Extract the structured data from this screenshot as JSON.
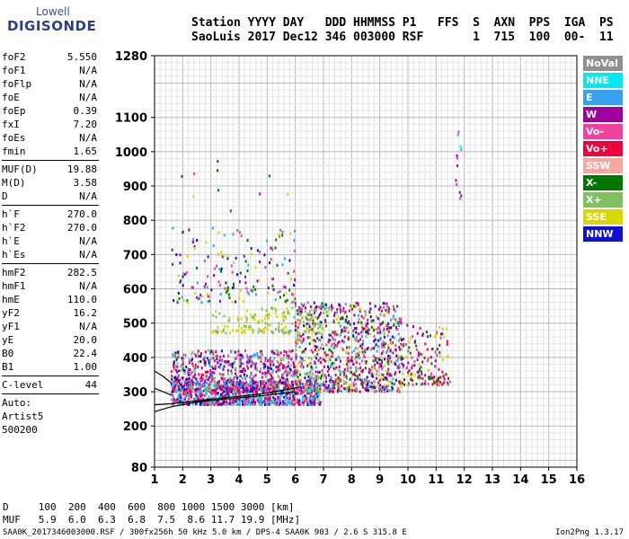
{
  "logo": {
    "line1": "Lowell",
    "line2": "DIGISONDE"
  },
  "header": {
    "labels": "Station YYYY DAY   DDD HHMMSS P1   FFS  S  AXN  PPS  IGA  PS",
    "values": "SaoLuis 2017 Dec12 346 003000 RSF       1  715  100  00-  11"
  },
  "params": [
    {
      "label": "foF2",
      "value": "5.550"
    },
    {
      "label": "foF1",
      "value": "N/A"
    },
    {
      "label": "foFlp",
      "value": "N/A"
    },
    {
      "label": "foE",
      "value": "N/A"
    },
    {
      "label": "foEp",
      "value": "0.39"
    },
    {
      "label": "fxI",
      "value": "7.20"
    },
    {
      "label": "foEs",
      "value": "N/A"
    },
    {
      "label": "fmin",
      "value": "1.65"
    },
    {
      "divider": true
    },
    {
      "label": "MUF(D)",
      "value": "19.88"
    },
    {
      "label": "M(D)",
      "value": "3.58"
    },
    {
      "label": "D",
      "value": "N/A"
    },
    {
      "divider": true
    },
    {
      "label": "h`F",
      "value": "270.0"
    },
    {
      "label": "h`F2",
      "value": "270.0"
    },
    {
      "label": "h`E",
      "value": "N/A"
    },
    {
      "label": "h`Es",
      "value": "N/A"
    },
    {
      "divider": true
    },
    {
      "label": "hmF2",
      "value": "282.5"
    },
    {
      "label": "hmF1",
      "value": "N/A"
    },
    {
      "label": "hmE",
      "value": "110.0"
    },
    {
      "label": "yF2",
      "value": "16.2"
    },
    {
      "label": "yF1",
      "value": "N/A"
    },
    {
      "label": "yE",
      "value": "20.0"
    },
    {
      "label": "B0",
      "value": "22.4"
    },
    {
      "label": "B1",
      "value": "1.00"
    },
    {
      "divider": true
    },
    {
      "label": "C-level",
      "value": "44"
    },
    {
      "divider": true
    },
    {
      "text": "Auto:"
    },
    {
      "text": "Artist5"
    },
    {
      "text": "500200"
    }
  ],
  "legend": [
    {
      "label": "NoVal",
      "color": "#909090"
    },
    {
      "label": "NNE",
      "color": "#00e8f0"
    },
    {
      "label": "E",
      "color": "#3aa0f0"
    },
    {
      "label": "W",
      "color": "#a000a0"
    },
    {
      "label": "Vo-",
      "color": "#f040a0"
    },
    {
      "label": "Vo+",
      "color": "#f0003c"
    },
    {
      "label": "SSW",
      "color": "#f4a8a0"
    },
    {
      "label": "X-",
      "color": "#007800"
    },
    {
      "label": "X+",
      "color": "#80c060"
    },
    {
      "label": "SSE",
      "color": "#d8d800"
    },
    {
      "label": "NNW",
      "color": "#1010d0"
    }
  ],
  "chart_data": {
    "type": "scatter",
    "xlim": [
      1,
      16
    ],
    "ylim": [
      80,
      1280
    ],
    "x_ticks": [
      1,
      2,
      3,
      4,
      5,
      6,
      7,
      8,
      9,
      10,
      11,
      12,
      13,
      14,
      15,
      16
    ],
    "y_ticks": [
      80,
      200,
      300,
      400,
      500,
      600,
      700,
      800,
      900,
      1000,
      1100,
      1280
    ],
    "grid": true,
    "clusters": [
      {
        "fmin": 1.6,
        "fmax": 6.9,
        "hmin": 262,
        "hmax": 330,
        "density": 900,
        "colors": [
          "Vo+",
          "Vo-",
          "W",
          "E",
          "NNW",
          "NNE"
        ]
      },
      {
        "fmin": 1.6,
        "fmax": 6.0,
        "hmin": 300,
        "hmax": 420,
        "density": 700,
        "colors": [
          "Vo+",
          "Vo-",
          "W",
          "NNW",
          "E",
          "X+"
        ]
      },
      {
        "fmin": 6.0,
        "fmax": 9.8,
        "hmin": 300,
        "hmax": 560,
        "density": 900,
        "colors": [
          "Vo+",
          "Vo-",
          "W",
          "E",
          "NNW",
          "SSE",
          "X-",
          "X+"
        ]
      },
      {
        "fmin": 9.8,
        "fmax": 11.5,
        "hmin": 320,
        "hmax": 500,
        "density": 150,
        "colors": [
          "Vo+",
          "Vo-",
          "W",
          "SSE",
          "X-"
        ]
      },
      {
        "fmin": 3.0,
        "fmax": 7.0,
        "hmin": 470,
        "hmax": 545,
        "density": 160,
        "colors": [
          "SSE",
          "X+"
        ]
      },
      {
        "fmin": 1.6,
        "fmax": 6.0,
        "hmin": 560,
        "hmax": 780,
        "density": 180,
        "colors": [
          "SSE",
          "W",
          "Vo-",
          "X-",
          "E",
          "NNW"
        ]
      },
      {
        "fmin": 11.7,
        "fmax": 11.9,
        "hmin": 860,
        "hmax": 1060,
        "density": 12,
        "colors": [
          "W",
          "X-",
          "E",
          "NNE",
          "Vo-"
        ]
      },
      {
        "fmin": 1.5,
        "fmax": 5.8,
        "hmin": 820,
        "hmax": 1000,
        "density": 10,
        "colors": [
          "W",
          "SSE",
          "Vo-",
          "X-"
        ]
      }
    ],
    "trace_lines": [
      {
        "color": "#000000",
        "points": [
          [
            1.0,
            242
          ],
          [
            1.6,
            256
          ],
          [
            2.5,
            270
          ],
          [
            3.5,
            278
          ],
          [
            5.0,
            290
          ],
          [
            6.0,
            300
          ]
        ]
      },
      {
        "color": "#000000",
        "points": [
          [
            1.0,
            262
          ],
          [
            1.6,
            265
          ],
          [
            2.5,
            274
          ],
          [
            3.5,
            282
          ],
          [
            5.0,
            296
          ],
          [
            6.2,
            314
          ]
        ]
      },
      {
        "color": "#000000",
        "points": [
          [
            1.0,
            360
          ],
          [
            1.3,
            345
          ],
          [
            1.6,
            325
          ]
        ]
      },
      {
        "color": "#000000",
        "points": [
          [
            1.0,
            310
          ],
          [
            1.3,
            300
          ],
          [
            1.6,
            290
          ]
        ]
      }
    ]
  },
  "footer": {
    "d_label": "D",
    "d_values": "100  200  400  600  800 1000 1500 3000 [km]",
    "muf_label": "MUF",
    "muf_values": "5.9  6.0  6.3  6.8  7.5  8.6 11.7 19.9 [MHz]",
    "info": "SAA0K_2017346003000.RSF / 300fx256h 50 kHz 5.0 km / DPS-4 SAA0K 903 / 2.6 S 315.8 E",
    "version": "Ion2Png 1.3.17"
  }
}
